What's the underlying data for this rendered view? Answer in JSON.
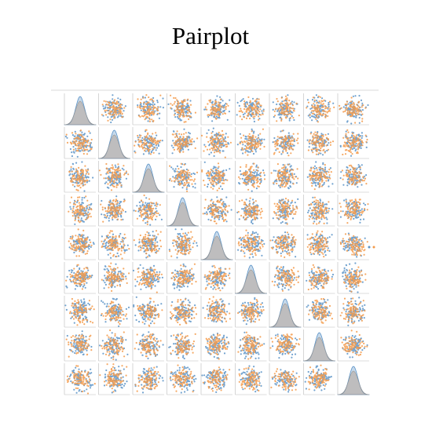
{
  "title": "Pairplot"
}
